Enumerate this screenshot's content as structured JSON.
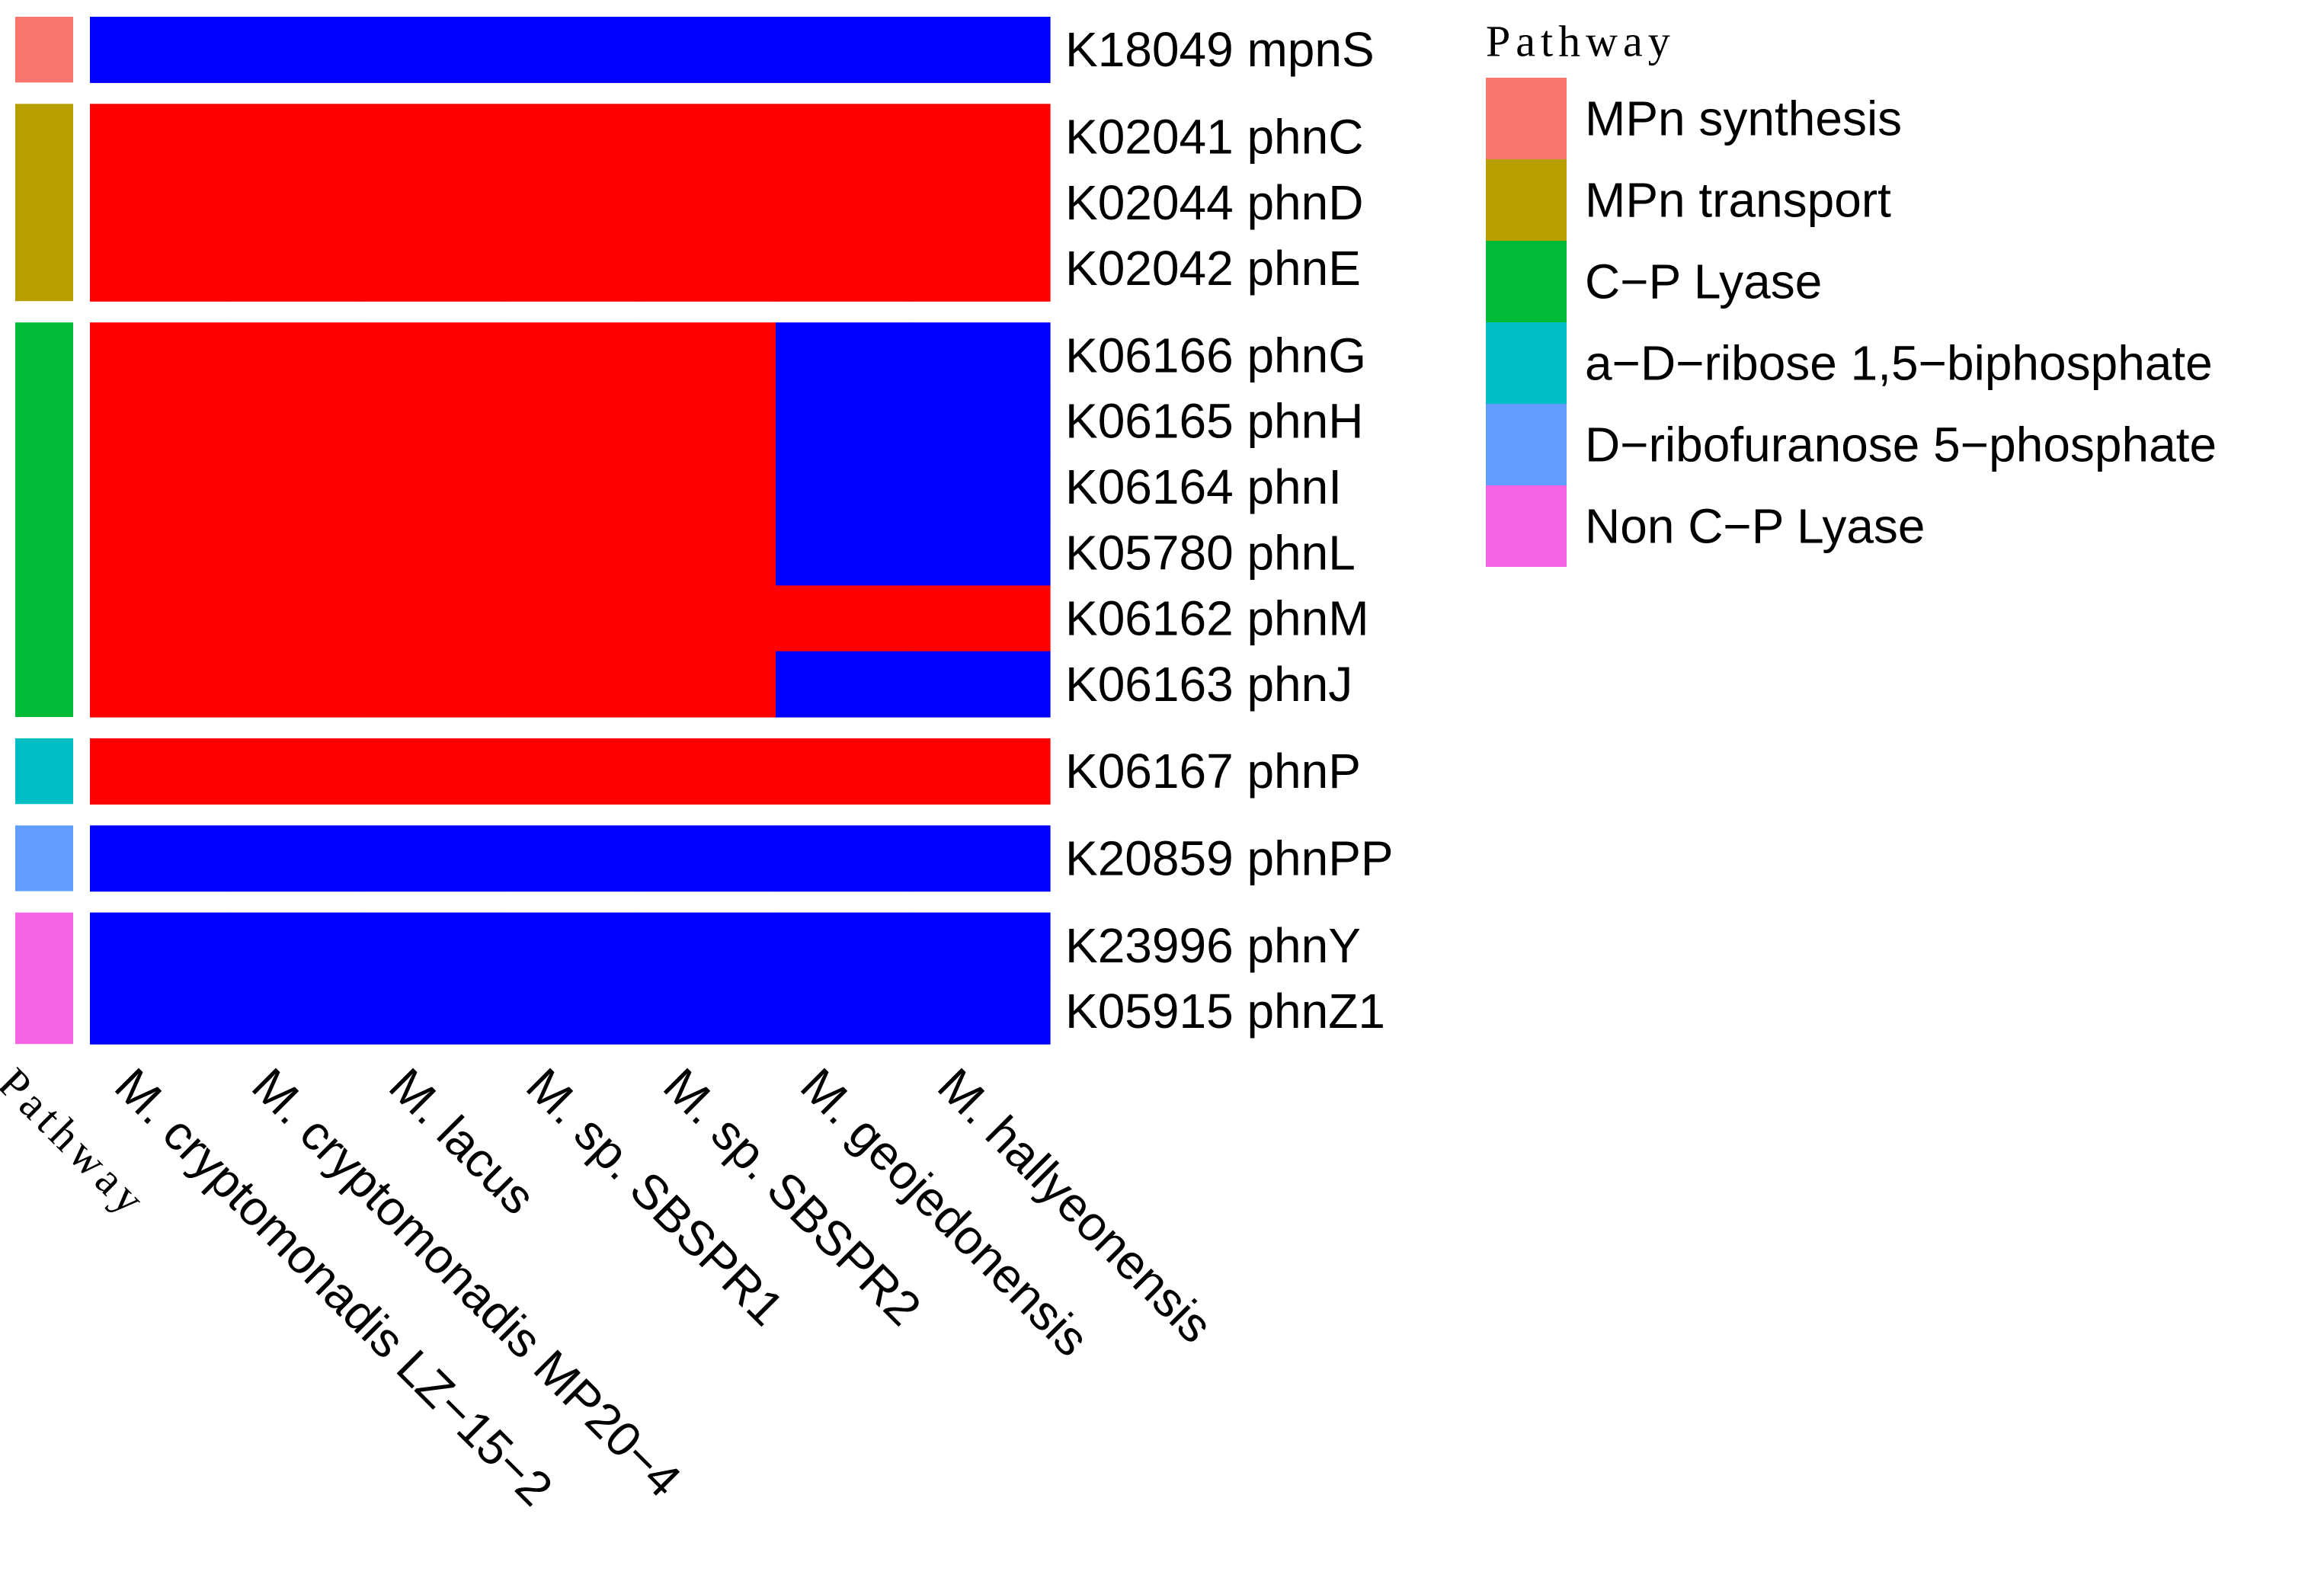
{
  "chart_data": {
    "type": "heatmap",
    "title": "",
    "annotation_column_label": "Pathway",
    "legend": {
      "title": "Pathway",
      "entries": [
        {
          "label": "MPn synthesis",
          "color": "#F8766D"
        },
        {
          "label": "MPn transport",
          "color": "#B79F00"
        },
        {
          "label": "C−P Lyase",
          "color": "#00BA38"
        },
        {
          "label": "a−D−ribose 1,5−biphosphate",
          "color": "#00BFC4"
        },
        {
          "label": "D−ribofuranose 5−phosphate",
          "color": "#619CFF"
        },
        {
          "label": "Non C−P Lyase",
          "color": "#F564E3"
        }
      ]
    },
    "columns": [
      "M. cryptomonadis LZ−15−2",
      "M. cryptomonadis MP20−4",
      "M. lacus",
      "M. sp. SBSPR1",
      "M. sp. SBSPR2",
      "M. geojedonensis",
      "M. hallyeonensis"
    ],
    "value_colors": {
      "present": "#FF0000",
      "absent": "#0000FF"
    },
    "groups": [
      {
        "pathway": "MPn synthesis",
        "rows": [
          {
            "gene": "K18049 mpnS",
            "values": [
              0,
              0,
              0,
              0,
              0,
              0,
              0
            ]
          }
        ]
      },
      {
        "pathway": "MPn transport",
        "rows": [
          {
            "gene": "K02041 phnC",
            "values": [
              1,
              1,
              1,
              1,
              1,
              1,
              1
            ]
          },
          {
            "gene": "K02044 phnD",
            "values": [
              1,
              1,
              1,
              1,
              1,
              1,
              1
            ]
          },
          {
            "gene": "K02042 phnE",
            "values": [
              1,
              1,
              1,
              1,
              1,
              1,
              1
            ]
          }
        ]
      },
      {
        "pathway": "C−P Lyase",
        "rows": [
          {
            "gene": "K06166 phnG",
            "values": [
              1,
              1,
              1,
              1,
              1,
              0,
              0
            ]
          },
          {
            "gene": "K06165 phnH",
            "values": [
              1,
              1,
              1,
              1,
              1,
              0,
              0
            ]
          },
          {
            "gene": "K06164 phnI",
            "values": [
              1,
              1,
              1,
              1,
              1,
              0,
              0
            ]
          },
          {
            "gene": "K05780 phnL",
            "values": [
              1,
              1,
              1,
              1,
              1,
              0,
              0
            ]
          },
          {
            "gene": "K06162 phnM",
            "values": [
              1,
              1,
              1,
              1,
              1,
              1,
              1
            ]
          },
          {
            "gene": "K06163 phnJ",
            "values": [
              1,
              1,
              1,
              1,
              1,
              0,
              0
            ]
          }
        ]
      },
      {
        "pathway": "a−D−ribose 1,5−biphosphate",
        "rows": [
          {
            "gene": "K06167 phnP",
            "values": [
              1,
              1,
              1,
              1,
              1,
              1,
              1
            ]
          }
        ]
      },
      {
        "pathway": "D−ribofuranose 5−phosphate",
        "rows": [
          {
            "gene": "K20859 phnPP",
            "values": [
              0,
              0,
              0,
              0,
              0,
              0,
              0
            ]
          }
        ]
      },
      {
        "pathway": "Non C−P Lyase",
        "rows": [
          {
            "gene": "K23996 phnY",
            "values": [
              0,
              0,
              0,
              0,
              0,
              0,
              0
            ]
          },
          {
            "gene": "K05915 phnZ1",
            "values": [
              0,
              0,
              0,
              0,
              0,
              0,
              0
            ]
          }
        ]
      }
    ]
  }
}
